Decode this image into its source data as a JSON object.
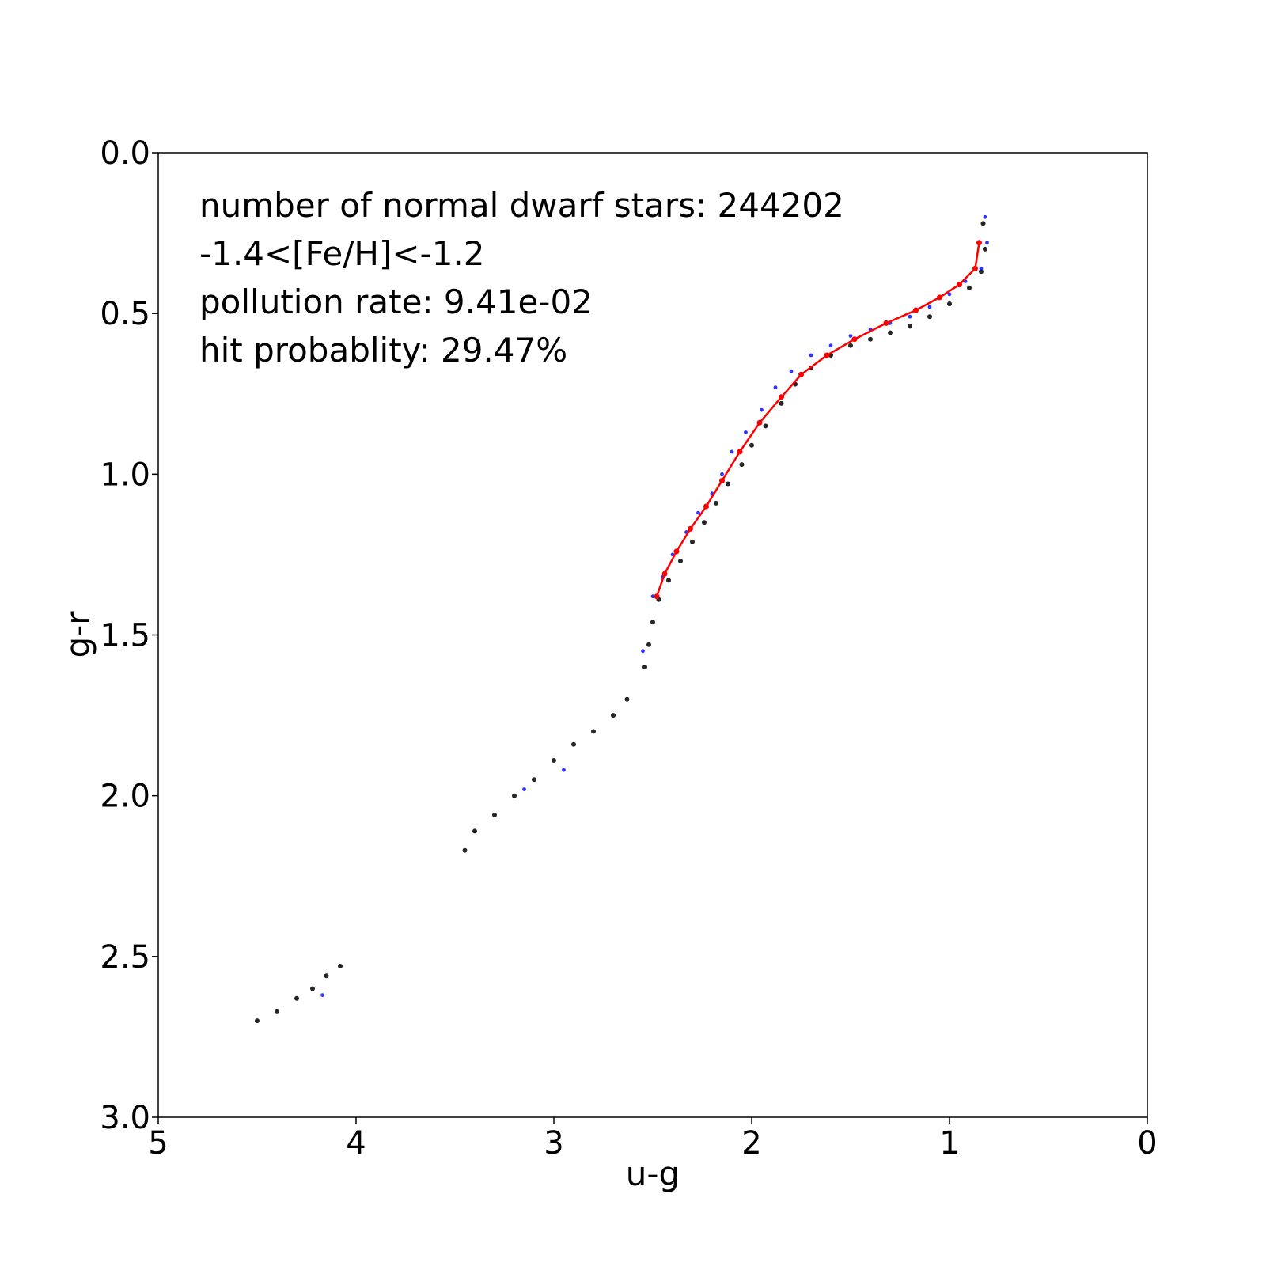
{
  "chart_data": {
    "type": "scatter",
    "xlabel": "u-g",
    "ylabel": "g-r",
    "xlim": [
      5,
      0
    ],
    "ylim": [
      3.0,
      0.0
    ],
    "x_inverted": true,
    "y_inverted": true,
    "grid": false,
    "x_ticks": [
      "5",
      "4",
      "3",
      "2",
      "1",
      "0"
    ],
    "x_tick_values": [
      5,
      4,
      3,
      2,
      1,
      0
    ],
    "y_ticks": [
      "0.0",
      "0.5",
      "1.0",
      "1.5",
      "2.0",
      "2.5",
      "3.0"
    ],
    "y_tick_values": [
      0.0,
      0.5,
      1.0,
      1.5,
      2.0,
      2.5,
      3.0
    ],
    "annotations": [
      "number of normal dwarf stars: 244202",
      "-1.4<[Fe/H]<-1.2",
      "pollution rate: 9.41e-02",
      "hit probablity: 29.47%"
    ],
    "series": [
      {
        "color": "#000000",
        "kind": "scatter",
        "description_points": [
          [
            0.83,
            0.22
          ],
          [
            0.82,
            0.3
          ],
          [
            0.84,
            0.37
          ],
          [
            0.9,
            0.42
          ],
          [
            1.0,
            0.47
          ],
          [
            1.1,
            0.51
          ],
          [
            1.2,
            0.54
          ],
          [
            1.3,
            0.56
          ],
          [
            1.4,
            0.58
          ],
          [
            1.5,
            0.6
          ],
          [
            1.6,
            0.63
          ],
          [
            1.7,
            0.67
          ],
          [
            1.78,
            0.72
          ],
          [
            1.85,
            0.78
          ],
          [
            1.93,
            0.85
          ],
          [
            2.0,
            0.91
          ],
          [
            2.05,
            0.97
          ],
          [
            2.12,
            1.03
          ],
          [
            2.18,
            1.09
          ],
          [
            2.24,
            1.15
          ],
          [
            2.3,
            1.21
          ],
          [
            2.36,
            1.27
          ],
          [
            2.42,
            1.33
          ],
          [
            2.47,
            1.39
          ],
          [
            2.5,
            1.46
          ],
          [
            2.52,
            1.53
          ],
          [
            2.54,
            1.6
          ],
          [
            2.63,
            1.7
          ],
          [
            2.7,
            1.75
          ],
          [
            2.8,
            1.8
          ],
          [
            2.9,
            1.84
          ],
          [
            3.0,
            1.89
          ],
          [
            3.1,
            1.95
          ],
          [
            3.2,
            2.0
          ],
          [
            3.3,
            2.06
          ],
          [
            3.4,
            2.11
          ],
          [
            3.45,
            2.17
          ],
          [
            4.08,
            2.53
          ],
          [
            4.15,
            2.56
          ],
          [
            4.22,
            2.6
          ],
          [
            4.3,
            2.63
          ],
          [
            4.4,
            2.67
          ],
          [
            4.5,
            2.7
          ]
        ]
      },
      {
        "color": "#0000ff",
        "kind": "scatter",
        "description_points": [
          [
            0.82,
            0.2
          ],
          [
            0.81,
            0.28
          ],
          [
            0.84,
            0.36
          ],
          [
            0.92,
            0.4
          ],
          [
            1.0,
            0.44
          ],
          [
            1.1,
            0.48
          ],
          [
            1.2,
            0.51
          ],
          [
            1.3,
            0.53
          ],
          [
            1.4,
            0.55
          ],
          [
            1.5,
            0.57
          ],
          [
            1.6,
            0.6
          ],
          [
            1.7,
            0.63
          ],
          [
            1.8,
            0.68
          ],
          [
            1.88,
            0.73
          ],
          [
            1.95,
            0.8
          ],
          [
            2.03,
            0.87
          ],
          [
            2.1,
            0.93
          ],
          [
            2.15,
            1.0
          ],
          [
            2.2,
            1.06
          ],
          [
            2.27,
            1.12
          ],
          [
            2.33,
            1.18
          ],
          [
            2.4,
            1.25
          ],
          [
            2.45,
            1.32
          ],
          [
            2.5,
            1.38
          ],
          [
            2.55,
            1.55
          ],
          [
            2.95,
            1.92
          ],
          [
            3.15,
            1.98
          ],
          [
            4.17,
            2.62
          ]
        ]
      },
      {
        "color": "#ff0000",
        "kind": "line",
        "x": [
          0.85,
          0.87,
          0.95,
          1.05,
          1.17,
          1.32,
          1.48,
          1.62,
          1.75,
          1.85,
          1.96,
          2.06,
          2.15,
          2.23,
          2.31,
          2.38,
          2.44,
          2.48
        ],
        "y": [
          0.28,
          0.36,
          0.41,
          0.45,
          0.49,
          0.53,
          0.58,
          0.63,
          0.69,
          0.76,
          0.84,
          0.93,
          1.02,
          1.1,
          1.17,
          1.24,
          1.31,
          1.38
        ]
      }
    ]
  }
}
